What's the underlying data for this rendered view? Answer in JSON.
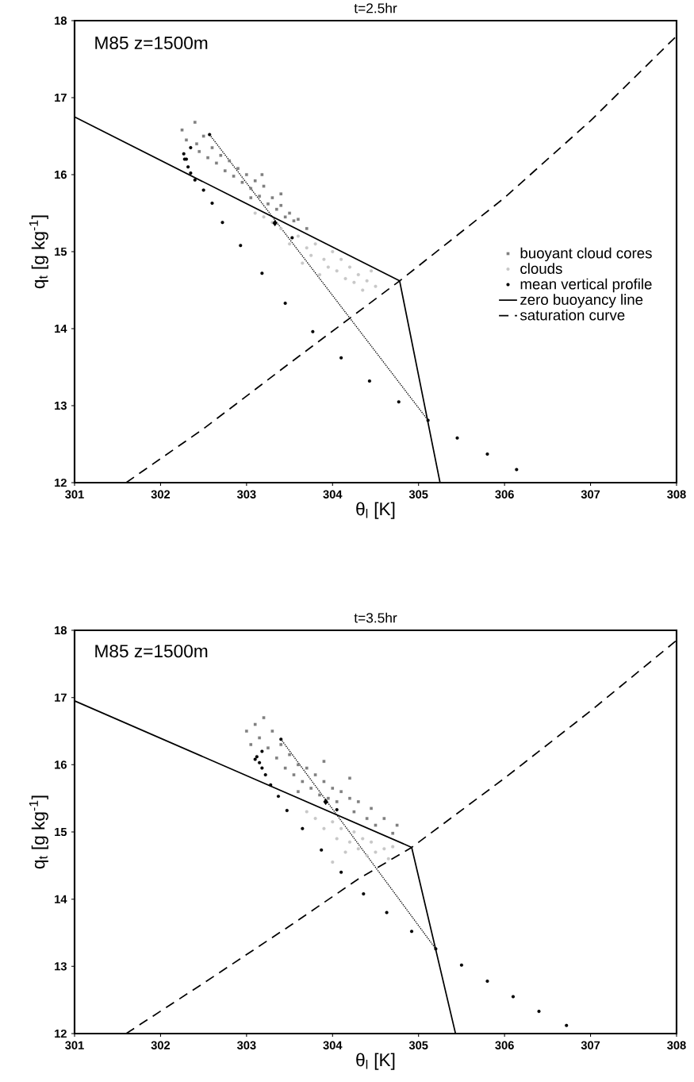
{
  "chart_data": [
    {
      "type": "scatter",
      "title": "t=2.5hr",
      "xlabel": "θ$_{l}$ [K]",
      "ylabel": "q$_{t}$ [g kg$^{-1}$]",
      "annotations": [
        "M85 z=1500m"
      ],
      "xlim": [
        301,
        308
      ],
      "ylim": [
        12,
        18
      ],
      "xticks": [
        301,
        302,
        303,
        304,
        305,
        306,
        307,
        308
      ],
      "yticks": [
        12,
        13,
        14,
        15,
        16,
        17,
        18
      ],
      "grid": false,
      "legend": "right",
      "series": [
        {
          "name": "buoyant cloud cores",
          "type": "scatter",
          "marker": "square",
          "color": "#808080",
          "x": [
            302.25,
            302.3,
            302.4,
            302.42,
            302.45,
            302.5,
            302.55,
            302.6,
            302.65,
            302.7,
            302.75,
            302.8,
            302.85,
            302.9,
            302.95,
            303.0,
            303.05,
            303.1,
            303.15,
            303.2,
            303.25,
            303.3,
            303.35,
            303.4,
            303.45,
            303.5,
            303.55,
            303.6,
            303.05,
            303.18,
            303.7,
            303.4
          ],
          "values": [
            16.58,
            16.45,
            16.68,
            16.4,
            16.3,
            16.5,
            16.22,
            16.35,
            16.15,
            16.25,
            16.05,
            16.18,
            15.98,
            16.08,
            15.9,
            16.0,
            15.82,
            15.92,
            15.72,
            15.85,
            15.62,
            15.7,
            15.55,
            15.6,
            15.45,
            15.5,
            15.4,
            15.42,
            15.7,
            16.0,
            15.3,
            15.75
          ]
        },
        {
          "name": "clouds",
          "type": "scatter",
          "marker": "circle",
          "color": "#c8c8c8",
          "x": [
            303.1,
            303.2,
            303.3,
            303.4,
            303.5,
            303.6,
            303.7,
            303.75,
            303.8,
            303.9,
            303.95,
            304.0,
            304.05,
            304.1,
            304.15,
            304.2,
            304.25,
            304.3,
            304.35,
            304.4,
            304.45,
            304.5,
            303.65,
            303.85
          ],
          "values": [
            15.5,
            15.45,
            15.38,
            15.3,
            15.1,
            15.2,
            15.05,
            14.95,
            15.1,
            14.9,
            14.8,
            15.0,
            14.75,
            14.9,
            14.65,
            14.8,
            14.6,
            14.7,
            14.5,
            14.62,
            14.75,
            14.55,
            14.85,
            14.7
          ]
        },
        {
          "name": "mean vertical profile",
          "type": "scatter",
          "marker": "circle",
          "color": "#000000",
          "x": [
            302.27,
            302.28,
            302.3,
            302.32,
            302.35,
            302.4,
            302.5,
            302.6,
            302.72,
            302.93,
            303.18,
            303.45,
            303.77,
            304.1,
            304.43,
            304.77,
            305.11,
            305.45,
            305.8,
            306.14,
            302.57,
            302.35
          ],
          "values": [
            16.27,
            16.2,
            16.2,
            16.1,
            16.02,
            15.93,
            15.8,
            15.63,
            15.38,
            15.08,
            14.72,
            14.33,
            13.96,
            13.62,
            13.32,
            13.05,
            12.81,
            12.58,
            12.37,
            12.17,
            16.52,
            16.35
          ]
        },
        {
          "name": "zero buoyancy line",
          "type": "line",
          "line_style": "solid",
          "color": "#000000",
          "x": [
            301,
            304.78,
            305.25
          ],
          "values": [
            16.75,
            14.62,
            12
          ]
        },
        {
          "name": "saturation curve",
          "type": "line",
          "line_style": "dashed",
          "color": "#000000",
          "x": [
            301.6,
            302.5,
            303.5,
            304.78,
            306,
            307,
            308
          ],
          "values": [
            12,
            12.7,
            13.55,
            14.62,
            15.7,
            16.7,
            17.8
          ]
        },
        {
          "type": "line",
          "line_style": "dotted",
          "color": "#000000",
          "x": [
            302.57,
            305.11
          ],
          "values": [
            16.52,
            12.81
          ]
        },
        {
          "type": "scatter",
          "marker": "circle",
          "color": "#000000",
          "x": [
            303.53
          ],
          "values": [
            15.18
          ]
        },
        {
          "type": "scatter",
          "marker": "diamond",
          "color": "#000000",
          "x": [
            303.33
          ],
          "values": [
            15.37
          ]
        }
      ]
    },
    {
      "type": "scatter",
      "title": "t=3.5hr",
      "xlabel": "θ$_{l}$ [K]",
      "ylabel": "q$_{t}$ [g kg$^{-1}$]",
      "annotations": [
        "M85 z=1500m"
      ],
      "xlim": [
        301,
        308
      ],
      "ylim": [
        12,
        18
      ],
      "xticks": [
        301,
        302,
        303,
        304,
        305,
        306,
        307,
        308
      ],
      "yticks": [
        12,
        13,
        14,
        15,
        16,
        17,
        18
      ],
      "grid": false,
      "series": [
        {
          "type": "scatter",
          "marker": "square",
          "color": "#808080",
          "x": [
            303.0,
            303.05,
            303.1,
            303.15,
            303.2,
            303.25,
            303.3,
            303.35,
            303.4,
            303.45,
            303.5,
            303.55,
            303.6,
            303.65,
            303.7,
            303.75,
            303.8,
            303.85,
            303.9,
            303.95,
            304.0,
            304.05,
            304.1,
            304.2,
            304.25,
            304.3,
            304.4,
            304.45,
            304.5,
            304.6,
            304.7,
            304.75,
            303.6,
            304.2,
            303.9
          ],
          "values": [
            16.5,
            16.3,
            16.6,
            16.4,
            16.7,
            16.25,
            16.5,
            16.1,
            16.3,
            15.95,
            16.15,
            15.85,
            16.0,
            15.75,
            15.95,
            15.65,
            15.85,
            15.55,
            15.75,
            15.5,
            15.65,
            15.45,
            15.6,
            15.5,
            15.3,
            15.45,
            15.2,
            15.35,
            15.1,
            15.2,
            14.98,
            15.1,
            15.6,
            15.8,
            16.05
          ]
        },
        {
          "type": "scatter",
          "marker": "circle",
          "color": "#c8c8c8",
          "x": [
            303.7,
            303.8,
            303.9,
            304.0,
            304.05,
            304.1,
            304.2,
            304.25,
            304.3,
            304.35,
            304.4,
            304.45,
            304.5,
            304.6,
            304.65,
            304.7,
            304.15,
            304.0
          ],
          "values": [
            15.3,
            15.2,
            15.05,
            15.15,
            14.9,
            15.05,
            14.85,
            15.0,
            14.75,
            14.9,
            14.65,
            14.85,
            14.7,
            14.75,
            14.6,
            14.78,
            14.7,
            14.55
          ]
        },
        {
          "type": "scatter",
          "marker": "circle",
          "color": "#000000",
          "x": [
            303.12,
            303.1,
            303.15,
            303.18,
            303.22,
            303.28,
            303.37,
            303.47,
            303.65,
            303.87,
            304.1,
            304.36,
            304.63,
            304.92,
            305.2,
            305.5,
            305.8,
            306.1,
            306.4,
            306.72,
            303.4,
            303.18
          ],
          "values": [
            16.12,
            16.08,
            16.03,
            15.95,
            15.85,
            15.7,
            15.53,
            15.32,
            15.05,
            14.73,
            14.4,
            14.08,
            13.8,
            13.52,
            13.26,
            13.02,
            12.78,
            12.55,
            12.33,
            12.12,
            16.38,
            16.2
          ]
        },
        {
          "type": "line",
          "line_style": "solid",
          "color": "#000000",
          "x": [
            301,
            304.92,
            305.43
          ],
          "values": [
            16.95,
            14.77,
            12
          ]
        },
        {
          "type": "line",
          "line_style": "dashed",
          "color": "#000000",
          "x": [
            301.6,
            302.5,
            303.5,
            304.3,
            304.92,
            306,
            307,
            308
          ],
          "values": [
            12,
            12.75,
            13.6,
            14.3,
            14.77,
            15.8,
            16.8,
            17.85
          ]
        },
        {
          "type": "line",
          "line_style": "dotted",
          "color": "#000000",
          "x": [
            303.4,
            305.2
          ],
          "values": [
            16.38,
            13.26
          ]
        },
        {
          "type": "scatter",
          "marker": "circle",
          "color": "#000000",
          "x": [
            304.05
          ],
          "values": [
            15.33
          ]
        },
        {
          "type": "scatter",
          "marker": "diamond",
          "color": "#000000",
          "x": [
            303.92
          ],
          "values": [
            15.45
          ]
        }
      ]
    }
  ]
}
